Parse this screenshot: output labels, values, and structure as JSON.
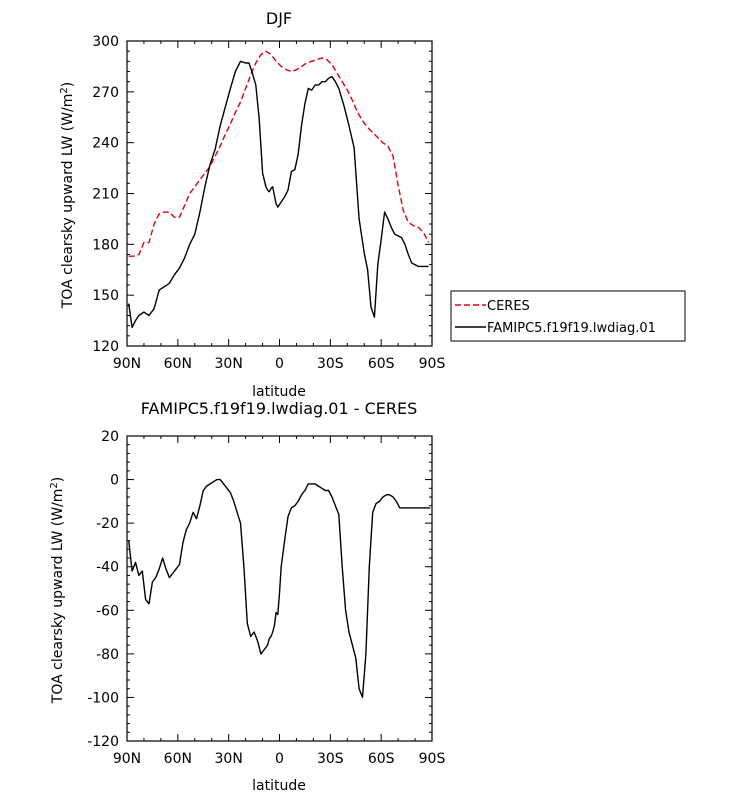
{
  "chart_data": [
    {
      "type": "line",
      "title": "DJF",
      "xlabel": "latitude",
      "ylabel": "TOA clearsky upward LW (W/m",
      "ylabel_sup": "2",
      "ylabel_end": ")",
      "xticks": [
        {
          "x": -90,
          "label": "90N"
        },
        {
          "x": -60,
          "label": "60N"
        },
        {
          "x": -30,
          "label": "30N"
        },
        {
          "x": 0,
          "label": "0"
        },
        {
          "x": 30,
          "label": "30S"
        },
        {
          "x": 60,
          "label": "60S"
        },
        {
          "x": 90,
          "label": "90S"
        }
      ],
      "xlim": [
        -90,
        90
      ],
      "ylim": [
        120,
        300
      ],
      "yticks": [
        120,
        150,
        180,
        210,
        240,
        270,
        300
      ],
      "legend_placement": "right",
      "series": [
        {
          "name": "CERES",
          "color": "#e8000b",
          "dash": true,
          "x": [
            -89,
            -86,
            -83,
            -80,
            -77,
            -74,
            -71,
            -68,
            -65,
            -62,
            -59,
            -56,
            -53,
            -50,
            -47,
            -44,
            -41,
            -38,
            -35,
            -32,
            -29,
            -26,
            -23,
            -20,
            -17,
            -14,
            -11,
            -8,
            -5,
            -2,
            1,
            4,
            7,
            10,
            13,
            16,
            19,
            22,
            25,
            28,
            31,
            34,
            37,
            40,
            43,
            46,
            49,
            52,
            55,
            58,
            61,
            64,
            67,
            70,
            73,
            76,
            79,
            82,
            85,
            88
          ],
          "y": [
            173,
            173,
            174,
            181,
            181,
            192,
            198,
            199,
            199,
            196,
            196,
            203,
            210,
            214,
            218,
            222,
            226,
            232,
            238,
            245,
            251,
            258,
            264,
            272,
            280,
            287,
            292,
            294,
            292,
            288,
            285,
            283,
            282,
            283,
            285,
            287,
            288,
            289,
            290,
            289,
            286,
            281,
            276,
            271,
            265,
            258,
            253,
            249,
            246,
            243,
            240,
            238,
            232,
            215,
            200,
            193,
            191,
            190,
            187,
            181
          ]
        },
        {
          "name": "FAMIPC5.f19f19.lwdiag.01",
          "color": "#000000",
          "dash": false,
          "x": [
            -89,
            -87,
            -85,
            -83,
            -80,
            -77,
            -74,
            -71,
            -68,
            -65,
            -62,
            -59,
            -56,
            -53,
            -50,
            -47,
            -44,
            -41,
            -38,
            -35,
            -32,
            -29,
            -26,
            -23,
            -20,
            -18,
            -16,
            -14,
            -12,
            -10,
            -8,
            -7,
            -6,
            -5,
            -4,
            -3,
            -2,
            -1,
            1,
            3,
            5,
            7,
            9,
            11,
            13,
            15,
            17,
            19,
            21,
            23,
            25,
            27,
            29,
            31,
            33,
            35,
            38,
            41,
            44,
            47,
            50,
            52,
            54,
            56,
            58,
            60,
            62,
            64,
            66,
            68,
            70,
            72,
            74,
            76,
            78,
            80,
            82,
            84,
            86,
            88
          ],
          "y": [
            145,
            131,
            135,
            138,
            140,
            138,
            142,
            153,
            155,
            157,
            162,
            166,
            172,
            180,
            186,
            199,
            214,
            227,
            236,
            250,
            261,
            272,
            282,
            288,
            287,
            287,
            281,
            274,
            254,
            222,
            214,
            212,
            211,
            213,
            214,
            209,
            204,
            202,
            205,
            208,
            212,
            223,
            224,
            233,
            250,
            263,
            272,
            271,
            274,
            274,
            276,
            276,
            278,
            279,
            276,
            272,
            262,
            250,
            237,
            195,
            175,
            165,
            143,
            137,
            168,
            183,
            199,
            195,
            190,
            186,
            185,
            184,
            180,
            174,
            169,
            168,
            167,
            167,
            167,
            167
          ]
        }
      ]
    },
    {
      "type": "line",
      "title": "FAMIPC5.f19f19.lwdiag.01 - CERES",
      "xlabel": "latitude",
      "ylabel": "TOA clearsky upward LW (W/m",
      "ylabel_sup": "2",
      "ylabel_end": ")",
      "xticks": [
        {
          "x": -90,
          "label": "90N"
        },
        {
          "x": -60,
          "label": "60N"
        },
        {
          "x": -30,
          "label": "30N"
        },
        {
          "x": 0,
          "label": "0"
        },
        {
          "x": 30,
          "label": "30S"
        },
        {
          "x": 60,
          "label": "60S"
        },
        {
          "x": 90,
          "label": "90S"
        }
      ],
      "xlim": [
        -90,
        90
      ],
      "ylim": [
        -120,
        20
      ],
      "yticks": [
        -120,
        -100,
        -80,
        -60,
        -40,
        -20,
        0,
        20
      ],
      "series": [
        {
          "name": "",
          "color": "#000000",
          "dash": false,
          "x": [
            -89,
            -87,
            -85,
            -83,
            -81,
            -79,
            -77,
            -75,
            -73,
            -71,
            -69,
            -67,
            -65,
            -63,
            -61,
            -59,
            -57,
            -55,
            -53,
            -51,
            -49,
            -47,
            -45,
            -43,
            -41,
            -39,
            -37,
            -35,
            -33,
            -31,
            -29,
            -27,
            -25,
            -23,
            -21,
            -19,
            -17,
            -15,
            -13,
            -11,
            -9,
            -7,
            -6,
            -5,
            -4,
            -3,
            -2,
            -1,
            0,
            1,
            3,
            5,
            7,
            9,
            11,
            13,
            15,
            17,
            19,
            21,
            23,
            25,
            27,
            29,
            31,
            33,
            35,
            37,
            39,
            41,
            43,
            45,
            47,
            49,
            51,
            53,
            55,
            57,
            59,
            61,
            63,
            65,
            67,
            69,
            71,
            73,
            75,
            77,
            79,
            81,
            83,
            85,
            87,
            89
          ],
          "y": [
            -28,
            -42,
            -38,
            -44,
            -42,
            -55,
            -57,
            -47,
            -45,
            -41,
            -36,
            -41,
            -45,
            -43,
            -41,
            -39,
            -29,
            -23,
            -20,
            -15,
            -18,
            -12,
            -5,
            -3,
            -2,
            -1,
            0,
            0,
            -2,
            -4,
            -6,
            -10,
            -15,
            -20,
            -40,
            -66,
            -72,
            -70,
            -74,
            -80,
            -78,
            -76,
            -73,
            -72,
            -70,
            -67,
            -61,
            -62,
            -52,
            -40,
            -28,
            -17,
            -13,
            -12,
            -10,
            -7,
            -5,
            -2,
            -2,
            -2,
            -3,
            -4,
            -5,
            -5,
            -8,
            -12,
            -16,
            -40,
            -60,
            -70,
            -76,
            -82,
            -96,
            -100,
            -80,
            -40,
            -15,
            -11,
            -10,
            -8,
            -7,
            -7,
            -8,
            -10,
            -13,
            -13,
            -13,
            -13,
            -13,
            -13,
            -13,
            -13,
            -13,
            -13
          ]
        }
      ]
    }
  ]
}
